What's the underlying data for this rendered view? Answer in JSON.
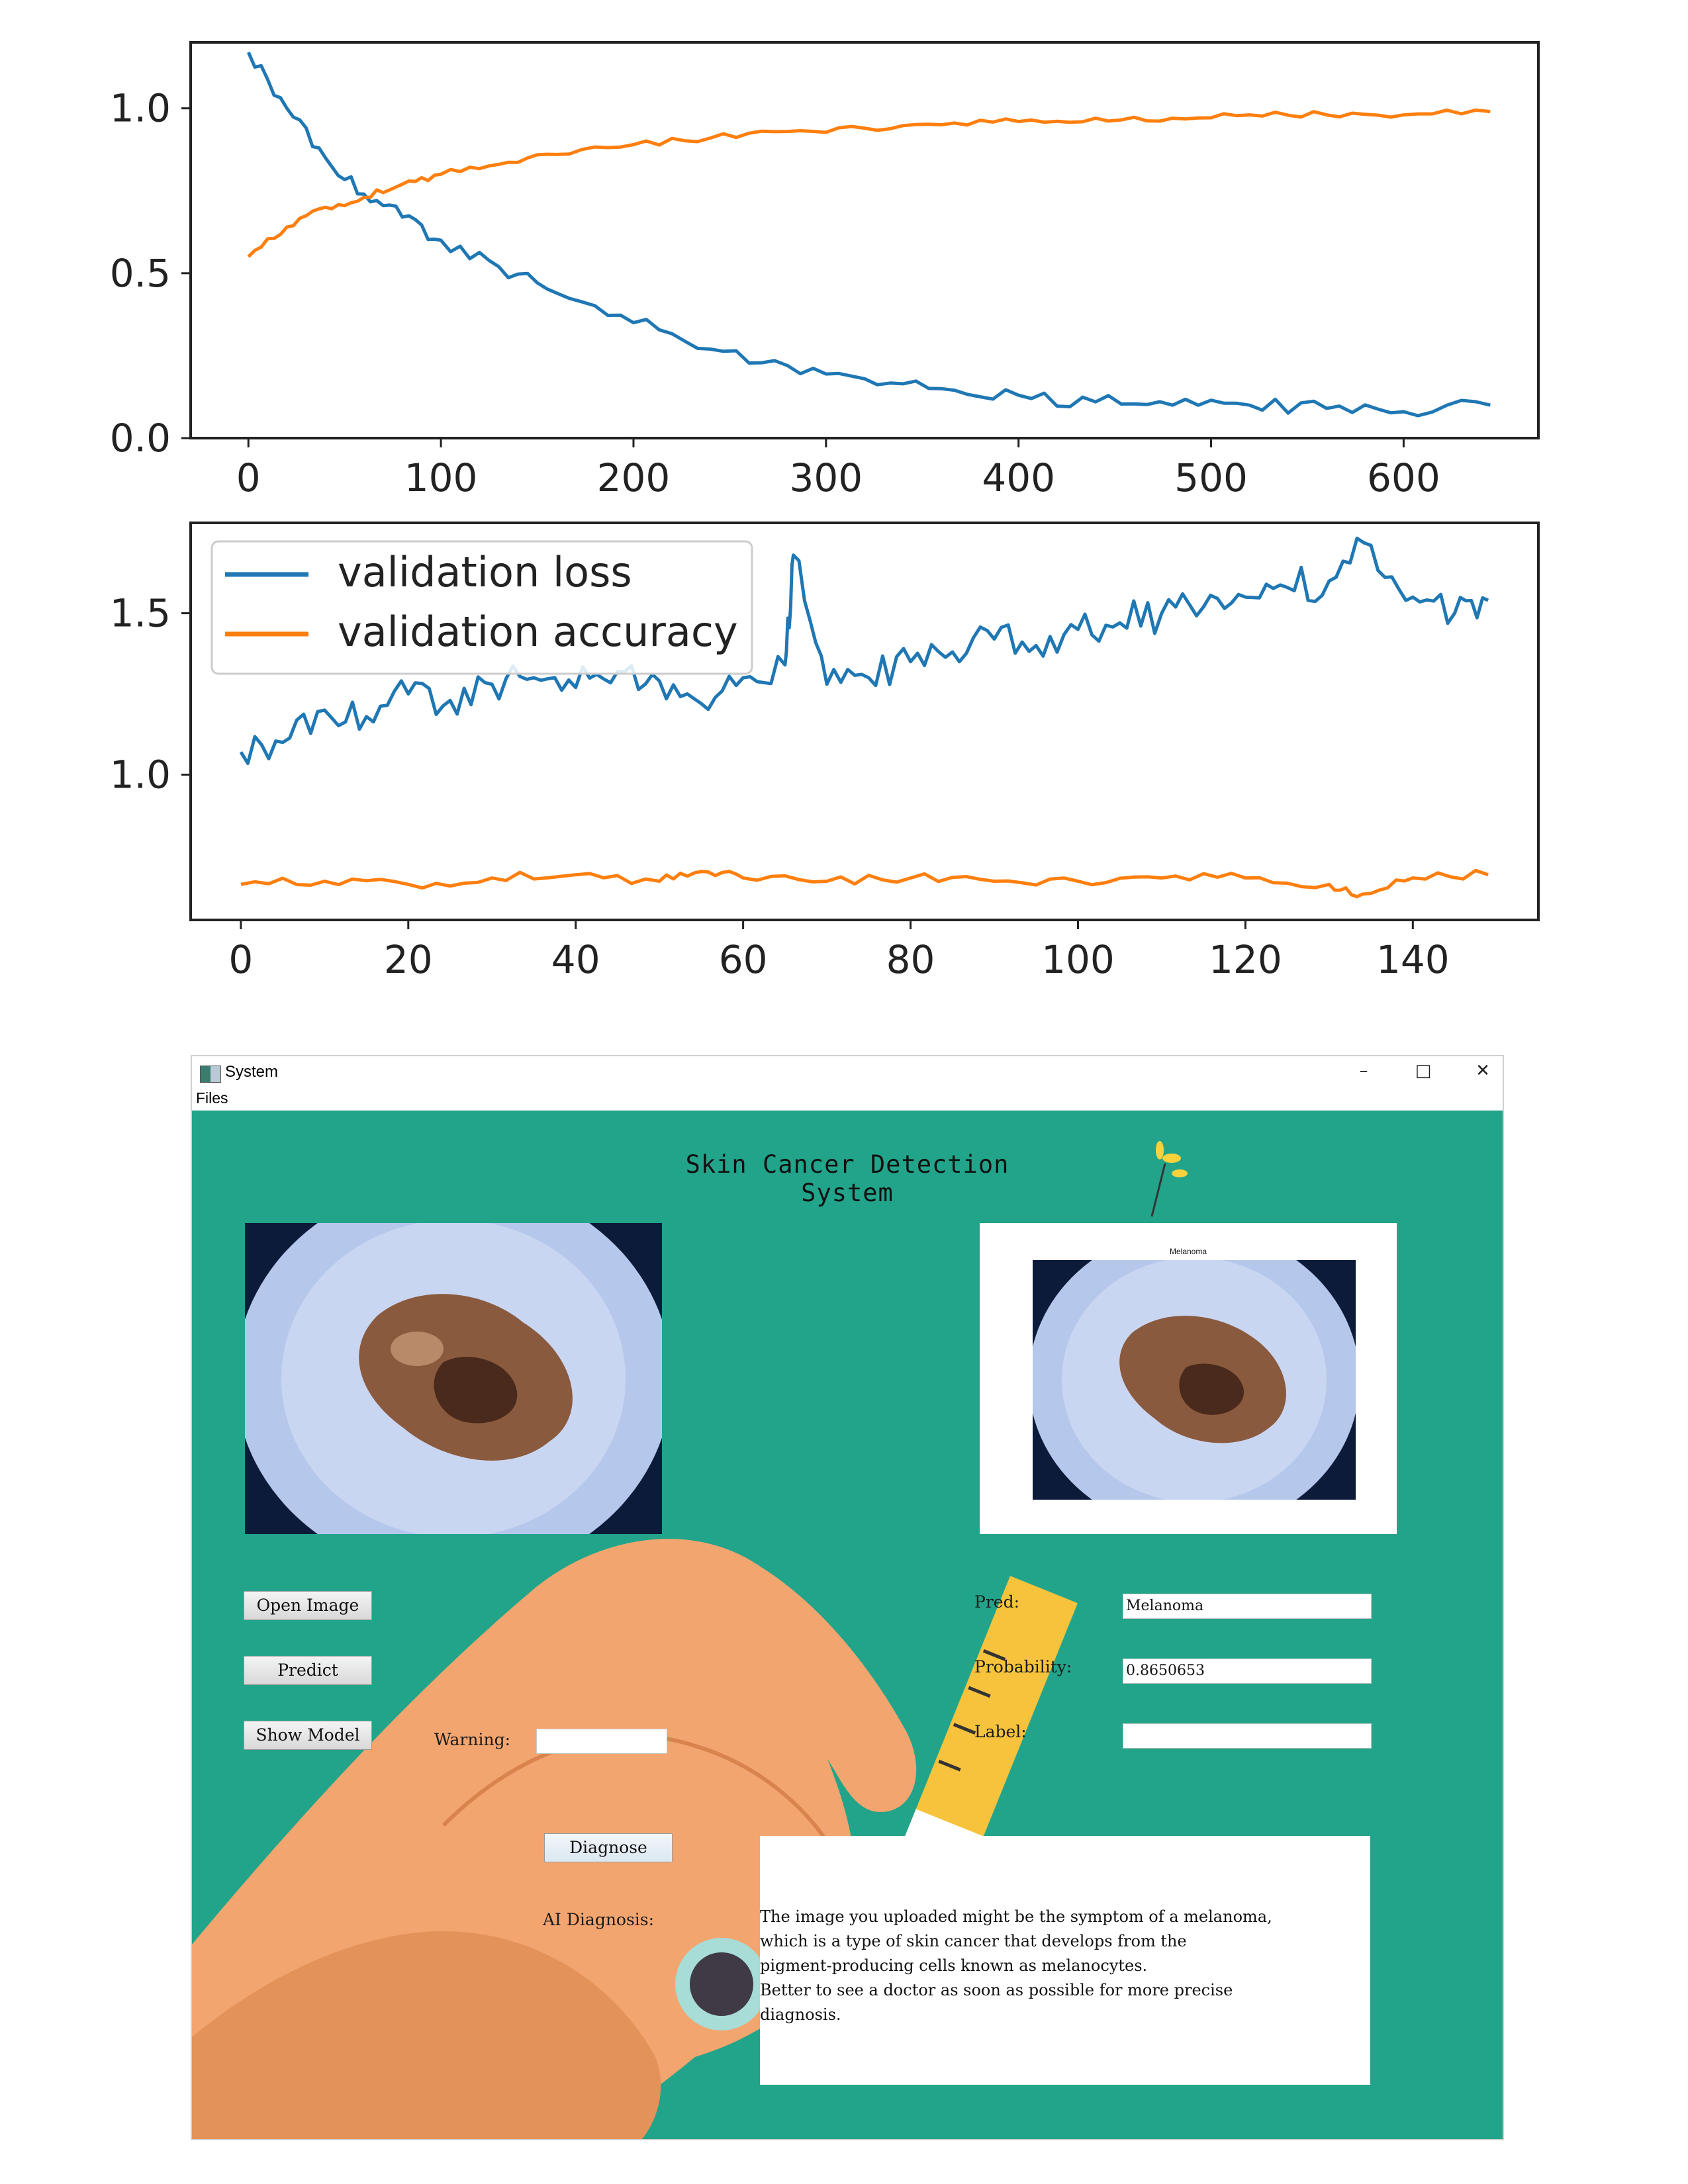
{
  "chart_data": [
    {
      "type": "line",
      "title": "",
      "xlabel": "",
      "ylabel": "",
      "xlim": [
        -30,
        670
      ],
      "ylim": [
        0,
        1.2
      ],
      "xticks": [
        "0",
        "100",
        "200",
        "300",
        "400",
        "500",
        "600"
      ],
      "yticks": [
        "0.0",
        "0.5",
        "1.0"
      ],
      "grid": false,
      "legend": "none",
      "series": [
        {
          "color": "#1f77b4",
          "x": [
            0,
            20,
            40,
            60,
            80,
            100,
            130,
            160,
            200,
            240,
            280,
            320,
            360,
            400,
            440,
            480,
            520,
            560,
            600,
            645
          ],
          "values": [
            1.17,
            1.0,
            0.85,
            0.74,
            0.67,
            0.6,
            0.52,
            0.44,
            0.35,
            0.27,
            0.22,
            0.18,
            0.15,
            0.13,
            0.11,
            0.1,
            0.1,
            0.09,
            0.08,
            0.1
          ]
        },
        {
          "color": "#ff7f0e",
          "x": [
            0,
            20,
            40,
            60,
            80,
            100,
            130,
            160,
            200,
            240,
            280,
            320,
            360,
            400,
            440,
            480,
            520,
            560,
            600,
            645
          ],
          "values": [
            0.55,
            0.64,
            0.7,
            0.73,
            0.77,
            0.8,
            0.83,
            0.86,
            0.89,
            0.91,
            0.93,
            0.94,
            0.95,
            0.96,
            0.97,
            0.97,
            0.98,
            0.98,
            0.98,
            0.99
          ]
        }
      ]
    },
    {
      "type": "line",
      "title": "",
      "xlabel": "",
      "ylabel": "",
      "xlim": [
        -6,
        155
      ],
      "ylim": [
        0.55,
        1.78
      ],
      "xticks": [
        "0",
        "20",
        "40",
        "60",
        "80",
        "100",
        "120",
        "140"
      ],
      "yticks": [
        "1.0",
        "1.5"
      ],
      "grid": false,
      "legend": "top-left",
      "series": [
        {
          "name": "validation loss",
          "color": "#1f77b4",
          "x": [
            0,
            5,
            10,
            15,
            20,
            25,
            30,
            35,
            40,
            45,
            50,
            55,
            60,
            65,
            66,
            70,
            75,
            80,
            85,
            90,
            95,
            100,
            105,
            110,
            115,
            120,
            125,
            130,
            135,
            140,
            145,
            149
          ],
          "values": [
            1.07,
            1.1,
            1.2,
            1.18,
            1.25,
            1.23,
            1.28,
            1.3,
            1.27,
            1.32,
            1.29,
            1.22,
            1.3,
            1.34,
            1.68,
            1.28,
            1.3,
            1.35,
            1.38,
            1.42,
            1.4,
            1.45,
            1.47,
            1.5,
            1.52,
            1.55,
            1.58,
            1.6,
            1.71,
            1.55,
            1.5,
            1.54
          ]
        },
        {
          "name": "validation accuracy",
          "color": "#ff7f0e",
          "x": [
            0,
            10,
            20,
            30,
            40,
            50,
            55,
            60,
            70,
            80,
            90,
            100,
            110,
            120,
            130,
            134,
            140,
            149
          ],
          "values": [
            0.66,
            0.67,
            0.66,
            0.68,
            0.69,
            0.67,
            0.7,
            0.68,
            0.67,
            0.68,
            0.67,
            0.67,
            0.68,
            0.68,
            0.66,
            0.63,
            0.68,
            0.69
          ]
        }
      ]
    }
  ],
  "window": {
    "title": "System",
    "menu": [
      "Files"
    ],
    "controls": {
      "minimize": "–",
      "maximize": "□",
      "close": "✕"
    }
  },
  "app": {
    "heading": "Skin Cancer Detection System",
    "result_title": "Melanoma",
    "buttons": {
      "open_image": "Open Image",
      "predict": "Predict",
      "show_model": "Show Model",
      "diagnose": "Diagnose"
    },
    "labels": {
      "warning": "Warning:",
      "pred": "Pred:",
      "probability": "Probability:",
      "label": "Label:",
      "ai_diagnosis": "AI Diagnosis:"
    },
    "fields": {
      "warning": "",
      "pred": "Melanoma",
      "probability": "0.8650653",
      "label": ""
    },
    "diagnosis_text": "The image you uploaded might be the symptom of a melanoma,\nwhich is a type of skin cancer that develops from the\npigment-producing cells known as melanocytes.\nBetter to see a doctor as soon as possible for more precise\ndiagnosis."
  },
  "colors": {
    "loss": "#1f77b4",
    "accuracy": "#ff7f0e",
    "app_background": "#22a48a",
    "hand": "#f3a56f"
  }
}
